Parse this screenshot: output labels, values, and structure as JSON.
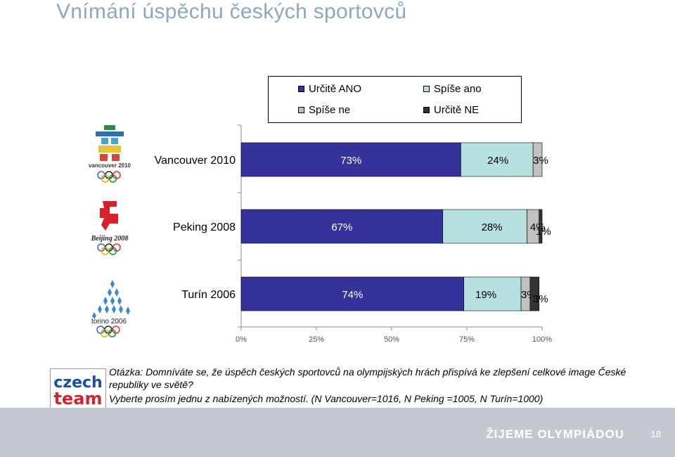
{
  "page": {
    "title": "Vnímání úspěchu českých sportovců",
    "question": "Otázka: Domníváte se, že úspěch českých sportovců na olympijských hrách přispívá ke zlepšení celkové image České republiky ve světě?",
    "note": "Vyberte prosím jednu z nabízených možností. (N Vancouver=1016, N Peking =1005, N Turín=1000)",
    "footer_slogan": "ŽIJEME OLYMPIÁDOU",
    "page_number": "18",
    "logos": {
      "vancouver": "vancouver 2010",
      "beijing": "Beijing 2008",
      "torino": "torino 2006",
      "czech_team_1": "czech",
      "czech_team_2": "team"
    }
  },
  "chart_data": {
    "type": "bar",
    "orientation": "horizontal",
    "stacked": "percent",
    "categories": [
      "Vancouver 2010",
      "Peking 2008",
      "Turín 2006"
    ],
    "series": [
      {
        "name": "Určitě ANO",
        "color": "#333399",
        "values": [
          73,
          67,
          74
        ],
        "labels": [
          "73%",
          "67%",
          "74%"
        ]
      },
      {
        "name": "Spíše ano",
        "color": "#b7e1e1",
        "values": [
          24,
          28,
          19
        ],
        "labels": [
          "24%",
          "28%",
          "19%"
        ]
      },
      {
        "name": "Spíše ne",
        "color": "#c0c0c0",
        "values": [
          3,
          4,
          3
        ],
        "labels": [
          "3%",
          "4%",
          "3%"
        ]
      },
      {
        "name": "Určitě NE",
        "color": "#333333",
        "values": [
          0,
          1,
          3
        ],
        "labels": [
          "",
          "1%",
          "3%"
        ]
      }
    ],
    "xlim": [
      0,
      100
    ],
    "xticks": [
      "0%",
      "25%",
      "50%",
      "75%",
      "100%"
    ],
    "legend_position": "top",
    "grid": false
  }
}
